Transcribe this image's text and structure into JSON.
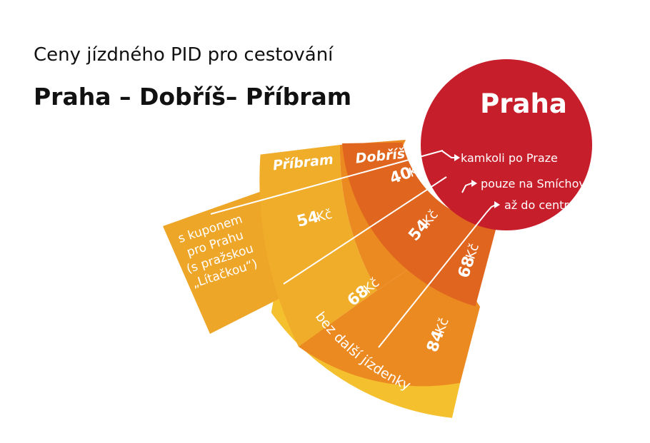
{
  "title": {
    "line1": "Ceny jízdného PID pro cestování",
    "line2": "Praha – Dobříš– Příbram"
  },
  "colors": {
    "red": "#c71e2b",
    "ring_dark": "#e0661f",
    "ring_mid": "#ec8a22",
    "ring_light": "#f0ad2a",
    "outer_band": "#f5c02e",
    "text": "#111111"
  },
  "city": {
    "name": "Praha"
  },
  "headers": {
    "pribram": "Příbram",
    "dobris": "Dobříš"
  },
  "routes": [
    {
      "label": "kamkoli po Praze"
    },
    {
      "label": "pouze na Smíchov"
    },
    {
      "label": "až do centra"
    }
  ],
  "prices": {
    "dobris_inner": "40",
    "pribram_inner": "54",
    "dobris_mid": "54",
    "pribram_mid": "68",
    "dobris_outer": "68",
    "pribram_outer": "84",
    "unit": "Kč"
  },
  "kupon": {
    "lines": [
      "s kuponem",
      "pro Prahu",
      "(s pražskou",
      "„Lítačkou“)"
    ]
  },
  "bez": {
    "label": "bez další jízdenky"
  }
}
